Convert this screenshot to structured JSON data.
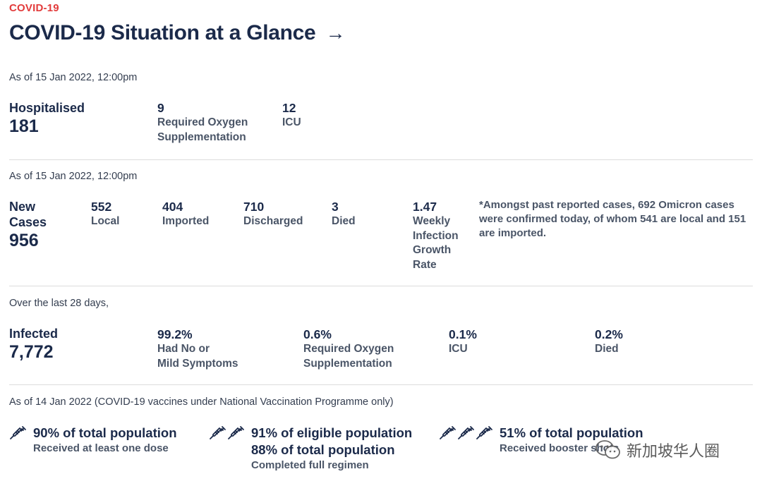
{
  "kicker": "COVID-19",
  "title": "COVID-19 Situation at a Glance",
  "title_arrow": "→",
  "hospital": {
    "as_of": "As of 15 Jan 2022, 12:00pm",
    "label": "Hospitalised",
    "value": "181",
    "oxygen_value": "9",
    "oxygen_label_1": "Required Oxygen",
    "oxygen_label_2": "Supplementation",
    "icu_value": "12",
    "icu_label": "ICU"
  },
  "cases": {
    "as_of": "As of 15 Jan 2022, 12:00pm",
    "label_1": "New",
    "label_2": "Cases",
    "value": "956",
    "local_value": "552",
    "local_label": "Local",
    "imported_value": "404",
    "imported_label": "Imported",
    "discharged_value": "710",
    "discharged_label": "Discharged",
    "died_value": "3",
    "died_label": "Died",
    "growth_value": "1.47",
    "growth_label_1": "Weekly",
    "growth_label_2": "Infection",
    "growth_label_3": "Growth",
    "growth_label_4": "Rate",
    "note_1": "*Amongst past reported cases, 692 Omicron cases",
    "note_2": "were confirmed today, of whom 541 are local and 151",
    "note_3": "are imported."
  },
  "infected": {
    "as_of": "Over the last 28 days,",
    "label": "Infected",
    "value": "7,772",
    "mild_value": "99.2%",
    "mild_label_1": "Had No or",
    "mild_label_2": "Mild Symptoms",
    "oxygen_value": "0.6%",
    "oxygen_label_1": "Required Oxygen",
    "oxygen_label_2": "Supplementation",
    "icu_value": "0.1%",
    "icu_label": "ICU",
    "died_value": "0.2%",
    "died_label": "Died"
  },
  "vaccination": {
    "as_of": "As of 14 Jan 2022 (COVID-19 vaccines under National Vaccination Programme only)",
    "one_dose_head": "90% of total population",
    "one_dose_sub": "Received at least one dose",
    "full_head_1": "91% of eligible population",
    "full_head_2": "88% of total population",
    "full_sub": "Completed full regimen",
    "booster_head": "51% of total population",
    "booster_sub": "Received booster shots"
  },
  "watermark": {
    "text": "新加坡华人圈",
    "icon": "wechat-icon"
  },
  "colors": {
    "accent": "#e23b3b",
    "navy": "#1b2a4a",
    "muted": "#4a5567",
    "divider": "#dcdcdc"
  }
}
